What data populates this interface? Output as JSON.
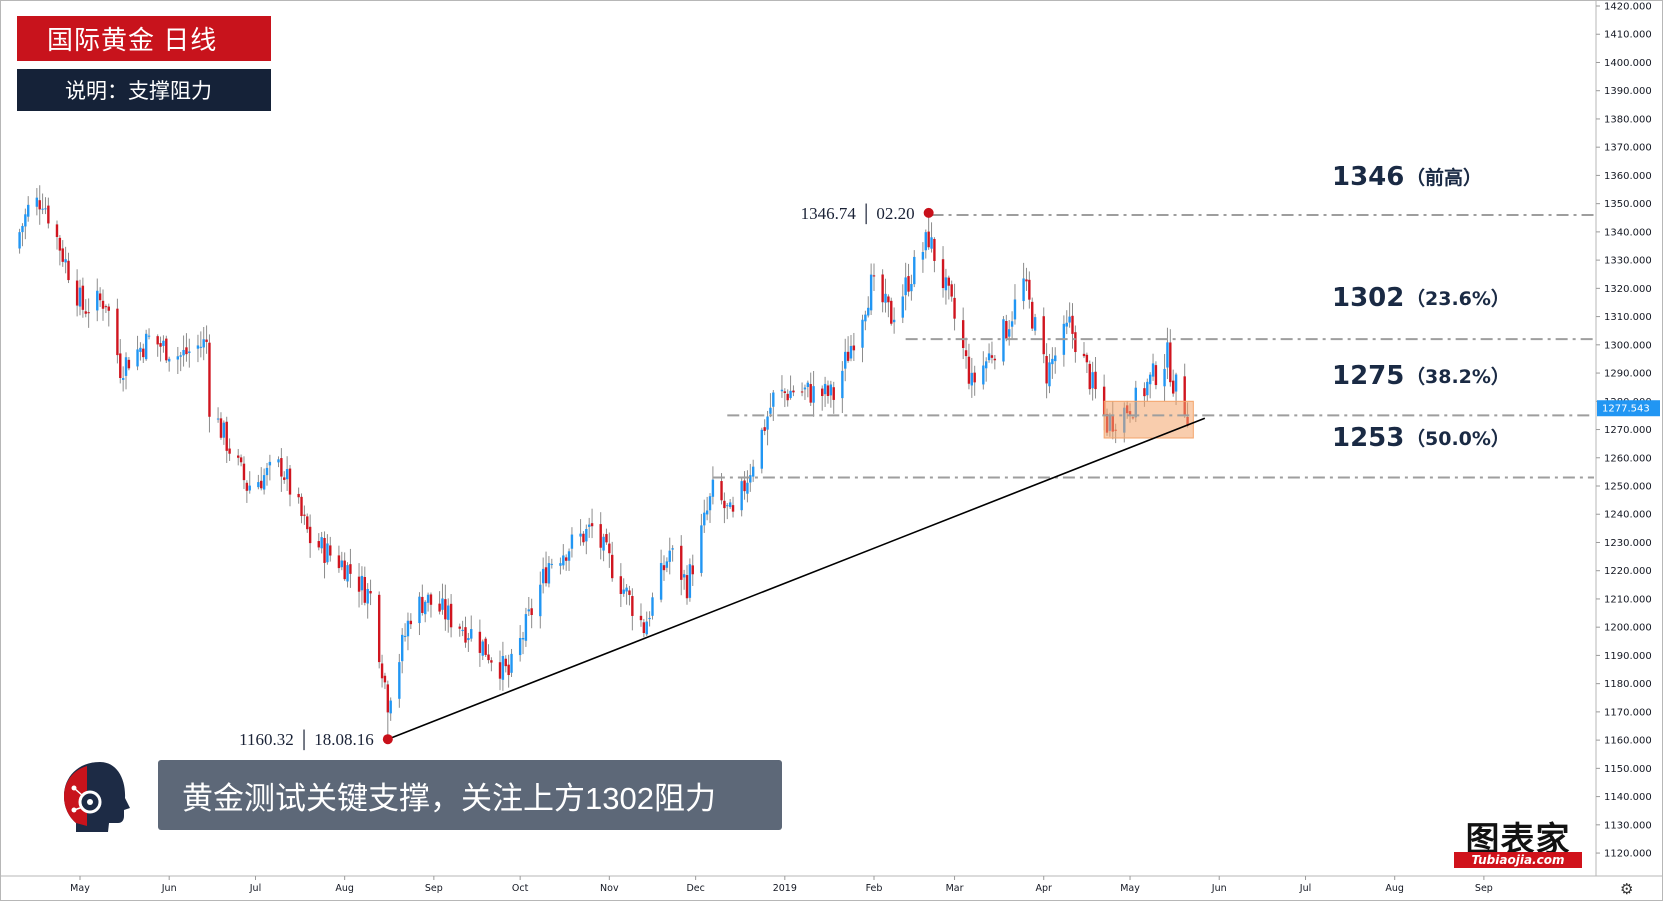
{
  "header": {
    "title": "国际黄金  日线",
    "subtitle": "说明：支撑阻力"
  },
  "caption": "黄金测试关键支撑，关注上方1302阻力",
  "brand": {
    "name": "图表家",
    "url_text": "Tubiaojia.com"
  },
  "colors": {
    "up": "#2196f3",
    "down": "#d0151f",
    "level_line": "#9e9e9e",
    "trendline": "#000000",
    "support_zone": "#f4a46a",
    "marker": "#c8101a",
    "price_tag": "#2196f3"
  },
  "chart_data": {
    "type": "candlestick",
    "title": "国际黄金  日线",
    "x_ticks": [
      "May",
      "Jun",
      "Jul",
      "Aug",
      "Sep",
      "Oct",
      "Nov",
      "Dec",
      "2019",
      "Feb",
      "Mar",
      "Apr",
      "May",
      "Jun",
      "Jul",
      "Aug",
      "Sep"
    ],
    "y_ticks": [
      1120,
      1130,
      1140,
      1150,
      1160,
      1170,
      1180,
      1190,
      1200,
      1210,
      1220,
      1230,
      1240,
      1250,
      1260,
      1270,
      1280,
      1290,
      1300,
      1310,
      1320,
      1330,
      1340,
      1350,
      1360,
      1370,
      1380,
      1390,
      1400,
      1410,
      1420
    ],
    "ylim": [
      1114,
      1420
    ],
    "last_price": "1277.543",
    "levels": [
      {
        "value": 1346,
        "label": "1346",
        "note": "（前高）"
      },
      {
        "value": 1302,
        "label": "1302",
        "note": "（23.6%）"
      },
      {
        "value": 1275,
        "label": "1275",
        "note": "（38.2%）"
      },
      {
        "value": 1253,
        "label": "1253",
        "note": "（50.0%）"
      }
    ],
    "annotations": [
      {
        "price": "1346.74",
        "date": "02.20"
      },
      {
        "price": "1160.32",
        "date": "18.08.16"
      }
    ],
    "series": [
      {
        "anchors": [
          {
            "date": "2018-04-10",
            "close": 1340
          },
          {
            "date": "2018-04-13",
            "close": 1348
          },
          {
            "date": "2018-04-18",
            "close": 1352
          },
          {
            "date": "2018-04-25",
            "close": 1332
          },
          {
            "date": "2018-05-02",
            "close": 1313
          },
          {
            "date": "2018-05-10",
            "close": 1316
          },
          {
            "date": "2018-05-15",
            "close": 1292
          },
          {
            "date": "2018-05-25",
            "close": 1302
          },
          {
            "date": "2018-06-05",
            "close": 1296
          },
          {
            "date": "2018-06-14",
            "close": 1301
          },
          {
            "date": "2018-06-15",
            "close": 1279
          },
          {
            "date": "2018-06-28",
            "close": 1250
          },
          {
            "date": "2018-07-10",
            "close": 1257
          },
          {
            "date": "2018-07-20",
            "close": 1231
          },
          {
            "date": "2018-08-01",
            "close": 1222
          },
          {
            "date": "2018-08-10",
            "close": 1211
          },
          {
            "date": "2018-08-16",
            "close": 1174
          },
          {
            "date": "2018-08-24",
            "close": 1205
          },
          {
            "date": "2018-08-29",
            "close": 1210
          },
          {
            "date": "2018-09-14",
            "close": 1198
          },
          {
            "date": "2018-09-27",
            "close": 1183
          },
          {
            "date": "2018-10-11",
            "close": 1223
          },
          {
            "date": "2018-10-26",
            "close": 1235
          },
          {
            "date": "2018-11-13",
            "close": 1200
          },
          {
            "date": "2018-11-22",
            "close": 1227
          },
          {
            "date": "2018-11-28",
            "close": 1215
          },
          {
            "date": "2018-12-07",
            "close": 1248
          },
          {
            "date": "2018-12-14",
            "close": 1238
          },
          {
            "date": "2018-12-28",
            "close": 1281
          },
          {
            "date": "2019-01-04",
            "close": 1284
          },
          {
            "date": "2019-01-18",
            "close": 1282
          },
          {
            "date": "2019-01-31",
            "close": 1321
          },
          {
            "date": "2019-02-07",
            "close": 1310
          },
          {
            "date": "2019-02-20",
            "close": 1338
          },
          {
            "date": "2019-02-28",
            "close": 1313
          },
          {
            "date": "2019-03-07",
            "close": 1286
          },
          {
            "date": "2019-03-19",
            "close": 1306
          },
          {
            "date": "2019-03-25",
            "close": 1322
          },
          {
            "date": "2019-04-02",
            "close": 1290
          },
          {
            "date": "2019-04-10",
            "close": 1307
          },
          {
            "date": "2019-04-23",
            "close": 1272
          },
          {
            "date": "2019-05-03",
            "close": 1280
          },
          {
            "date": "2019-05-14",
            "close": 1296
          },
          {
            "date": "2019-05-16",
            "close": 1287
          },
          {
            "date": "2019-05-21",
            "close": 1276
          }
        ]
      }
    ],
    "trendline": [
      {
        "date": "2018-08-16",
        "value": 1160.32
      },
      {
        "date": "2019-05-27",
        "value": 1274
      }
    ],
    "support_zone": {
      "date_from": "2019-04-22",
      "date_to": "2019-05-23",
      "from": 1267,
      "to": 1280
    }
  }
}
